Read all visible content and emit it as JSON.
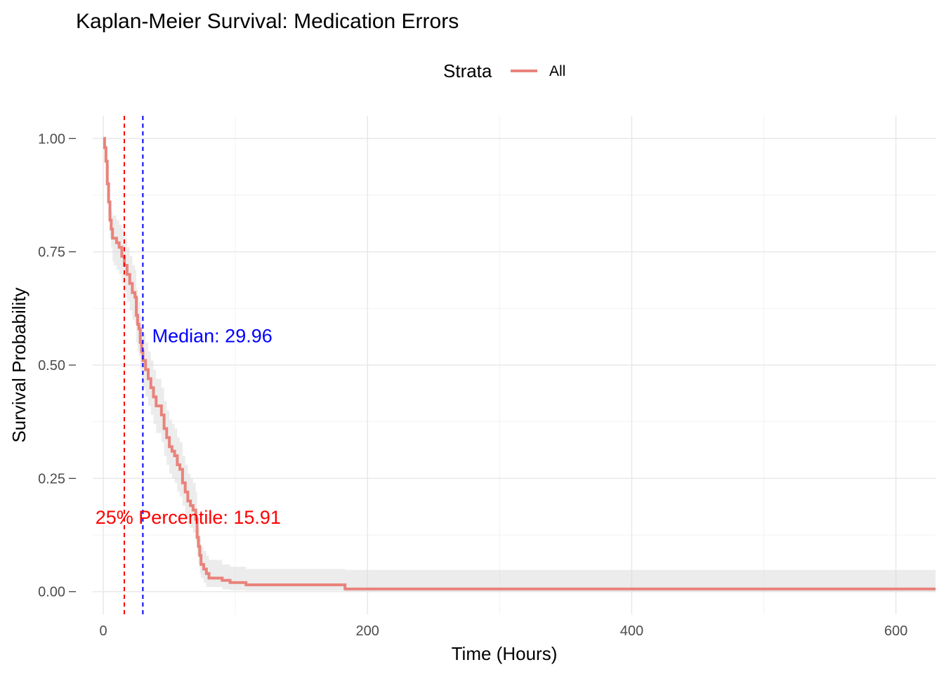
{
  "chart_data": {
    "type": "line",
    "title": "Kaplan-Meier Survival: Medication Errors",
    "xlabel": "Time (Hours)",
    "ylabel": "Survival Probability",
    "xlim": [
      -8,
      630
    ],
    "ylim": [
      -0.05,
      1.05
    ],
    "x_ticks": [
      0,
      200,
      400,
      600
    ],
    "x_tick_labels": [
      "0",
      "200",
      "400",
      "600"
    ],
    "y_ticks": [
      0.0,
      0.25,
      0.5,
      0.75,
      1.0
    ],
    "y_tick_labels": [
      "0.00",
      "0.25",
      "0.50",
      "0.75",
      "1.00"
    ],
    "grid": true,
    "legend": {
      "title": "Strata",
      "position": "top",
      "entries": [
        "All"
      ]
    },
    "series": [
      {
        "name": "All",
        "color": "#e8837b",
        "step": true,
        "x": [
          0,
          1,
          2,
          3,
          4,
          5,
          6,
          7,
          8,
          9,
          10,
          12,
          14,
          16,
          18,
          20,
          22,
          24,
          25,
          26,
          27,
          28,
          29,
          30,
          32,
          34,
          36,
          38,
          40,
          42,
          44,
          46,
          48,
          50,
          52,
          54,
          56,
          58,
          60,
          62,
          64,
          66,
          68,
          70,
          71,
          72,
          73,
          74,
          76,
          78,
          80,
          84,
          90,
          96,
          108,
          120,
          150,
          183,
          200,
          400,
          630
        ],
        "y": [
          1.0,
          0.98,
          0.95,
          0.9,
          0.86,
          0.82,
          0.8,
          0.78,
          0.78,
          0.78,
          0.77,
          0.76,
          0.74,
          0.72,
          0.7,
          0.68,
          0.66,
          0.65,
          0.61,
          0.59,
          0.58,
          0.55,
          0.53,
          0.51,
          0.49,
          0.47,
          0.45,
          0.43,
          0.41,
          0.41,
          0.39,
          0.36,
          0.34,
          0.32,
          0.31,
          0.3,
          0.28,
          0.27,
          0.24,
          0.22,
          0.2,
          0.19,
          0.18,
          0.16,
          0.12,
          0.1,
          0.08,
          0.06,
          0.05,
          0.04,
          0.03,
          0.03,
          0.025,
          0.02,
          0.015,
          0.015,
          0.015,
          0.006,
          0.006,
          0.006,
          0.006
        ],
        "ci_lower": [
          1.0,
          0.96,
          0.92,
          0.86,
          0.82,
          0.78,
          0.76,
          0.73,
          0.72,
          0.72,
          0.71,
          0.7,
          0.68,
          0.66,
          0.64,
          0.62,
          0.6,
          0.59,
          0.55,
          0.53,
          0.52,
          0.49,
          0.47,
          0.45,
          0.43,
          0.41,
          0.39,
          0.37,
          0.35,
          0.35,
          0.33,
          0.3,
          0.28,
          0.26,
          0.25,
          0.24,
          0.22,
          0.21,
          0.19,
          0.17,
          0.15,
          0.14,
          0.13,
          0.11,
          0.08,
          0.06,
          0.04,
          0.03,
          0.02,
          0.01,
          0.01,
          0.01,
          0.005,
          0.003,
          0.002,
          0.002,
          0.002,
          0.0,
          0.0,
          0.0,
          0.0
        ],
        "ci_upper": [
          1.0,
          1.0,
          0.98,
          0.94,
          0.9,
          0.86,
          0.84,
          0.83,
          0.83,
          0.83,
          0.82,
          0.81,
          0.8,
          0.78,
          0.76,
          0.74,
          0.72,
          0.71,
          0.67,
          0.65,
          0.64,
          0.61,
          0.59,
          0.57,
          0.55,
          0.53,
          0.51,
          0.49,
          0.47,
          0.47,
          0.45,
          0.42,
          0.4,
          0.38,
          0.37,
          0.36,
          0.34,
          0.33,
          0.3,
          0.28,
          0.26,
          0.25,
          0.24,
          0.22,
          0.17,
          0.14,
          0.12,
          0.1,
          0.09,
          0.08,
          0.07,
          0.07,
          0.06,
          0.055,
          0.05,
          0.05,
          0.05,
          0.048,
          0.048,
          0.048,
          0.048
        ]
      }
    ],
    "reference_lines": [
      {
        "x": 15.91,
        "color": "#ff0000",
        "style": "dashed"
      },
      {
        "x": 29.96,
        "color": "#0000ff",
        "style": "dashed"
      }
    ],
    "annotations": [
      {
        "text": "Median:  29.96",
        "x": 37,
        "y": 0.55,
        "color": "#0000ff"
      },
      {
        "text": "25% Percentile:  15.91",
        "x": -6,
        "y": 0.15,
        "color": "#ff0000"
      }
    ]
  }
}
